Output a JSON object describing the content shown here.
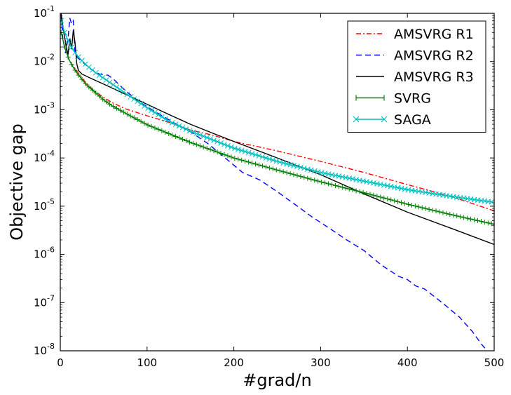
{
  "chart_data": {
    "type": "line",
    "title": "",
    "xlabel": "#grad/n",
    "ylabel": "Objective gap",
    "xlim": [
      0,
      500
    ],
    "ylim": [
      1e-08,
      0.1
    ],
    "yscale": "log",
    "grid": false,
    "legend_position": "top-right",
    "x_ticks": [
      {
        "value": 0,
        "label": "0"
      },
      {
        "value": 100,
        "label": "100"
      },
      {
        "value": 200,
        "label": "200"
      },
      {
        "value": 300,
        "label": "300"
      },
      {
        "value": 400,
        "label": "400"
      },
      {
        "value": 500,
        "label": "500"
      }
    ],
    "y_ticks": [
      {
        "value": 0.1,
        "base": "10",
        "exp": "-1"
      },
      {
        "value": 0.01,
        "base": "10",
        "exp": "-2"
      },
      {
        "value": 0.001,
        "base": "10",
        "exp": "-3"
      },
      {
        "value": 0.0001,
        "base": "10",
        "exp": "-4"
      },
      {
        "value": 1e-05,
        "base": "10",
        "exp": "-5"
      },
      {
        "value": 1e-06,
        "base": "10",
        "exp": "-6"
      },
      {
        "value": 1e-07,
        "base": "10",
        "exp": "-7"
      },
      {
        "value": 1e-08,
        "base": "10",
        "exp": "-8"
      }
    ],
    "series": [
      {
        "name": "AMSVRG R1",
        "color": "#ff0000",
        "style": "dashdot",
        "marker": "none",
        "x": [
          1,
          4,
          8,
          11,
          15,
          20,
          30,
          40,
          50,
          60,
          75,
          100,
          125,
          150,
          175,
          200,
          250,
          300,
          350,
          400,
          450,
          500
        ],
        "y": [
          0.07,
          0.04,
          0.015,
          0.01,
          0.008,
          0.006,
          0.0035,
          0.0024,
          0.0018,
          0.0014,
          0.00105,
          0.00075,
          0.00055,
          0.00038,
          0.0003,
          0.00022,
          0.00014,
          8.5e-05,
          5e-05,
          2.8e-05,
          1.6e-05,
          8e-06
        ]
      },
      {
        "name": "AMSVRG R2",
        "color": "#0000ff",
        "style": "dashed",
        "marker": "none",
        "x": [
          1,
          3,
          6,
          9,
          11,
          13,
          15,
          17,
          20,
          25,
          35,
          45,
          55,
          62,
          75,
          90,
          110,
          130,
          150,
          170,
          190,
          210,
          230,
          250,
          270,
          290,
          310,
          330,
          350,
          370,
          390,
          400,
          410,
          420,
          440,
          460,
          475,
          485,
          490
        ],
        "y": [
          0.09,
          0.03,
          0.015,
          0.03,
          0.08,
          0.06,
          0.07,
          0.015,
          0.012,
          0.01,
          0.007,
          0.0055,
          0.0052,
          0.0042,
          0.0025,
          0.0015,
          0.0009,
          0.00055,
          0.00035,
          0.0002,
          0.0001,
          5e-05,
          3.5e-05,
          2e-05,
          1.1e-05,
          6e-06,
          3.5e-06,
          2e-06,
          1.2e-06,
          6e-07,
          3.5e-07,
          3e-07,
          2.2e-07,
          1.9e-07,
          1e-07,
          5e-08,
          2.5e-08,
          1.4e-08,
          1.1e-08
        ]
      },
      {
        "name": "AMSVRG R3",
        "color": "#000000",
        "style": "solid",
        "marker": "none",
        "x": [
          1,
          4,
          7,
          9,
          11,
          13,
          15,
          17,
          19,
          21,
          25,
          35,
          50,
          75,
          100,
          125,
          150,
          175,
          200,
          250,
          300,
          350,
          400,
          450,
          500
        ],
        "y": [
          0.1,
          0.04,
          0.02,
          0.014,
          0.03,
          0.018,
          0.045,
          0.025,
          0.009,
          0.0065,
          0.0055,
          0.0045,
          0.0034,
          0.0021,
          0.0013,
          0.0008,
          0.0005,
          0.00033,
          0.00022,
          0.0001,
          4.5e-05,
          1.8e-05,
          7.5e-06,
          3.5e-06,
          1.6e-06
        ]
      },
      {
        "name": "SVRG",
        "color": "#008000",
        "style": "solid",
        "marker": "plus",
        "x": [
          1,
          5,
          10,
          15,
          20,
          30,
          40,
          50,
          60,
          75,
          100,
          125,
          150,
          175,
          200,
          250,
          300,
          350,
          400,
          450,
          500
        ],
        "y": [
          0.04,
          0.02,
          0.011,
          0.0075,
          0.0055,
          0.0033,
          0.0023,
          0.0016,
          0.0012,
          0.00085,
          0.00049,
          0.00032,
          0.00021,
          0.000145,
          0.0001,
          5.6e-05,
          3.2e-05,
          1.9e-05,
          1.1e-05,
          6.7e-06,
          4.2e-06
        ]
      },
      {
        "name": "SAGA",
        "color": "#00bfbf",
        "style": "solid",
        "marker": "x",
        "x": [
          1,
          5,
          10,
          15,
          20,
          30,
          40,
          50,
          60,
          75,
          100,
          125,
          150,
          175,
          200,
          250,
          300,
          350,
          400,
          450,
          500
        ],
        "y": [
          0.07,
          0.04,
          0.025,
          0.017,
          0.013,
          0.0085,
          0.006,
          0.0045,
          0.0034,
          0.0022,
          0.0011,
          0.00058,
          0.00036,
          0.00024,
          0.00016,
          8.5e-05,
          5e-05,
          3.3e-05,
          2.2e-05,
          1.6e-05,
          1.2e-05
        ]
      }
    ]
  }
}
